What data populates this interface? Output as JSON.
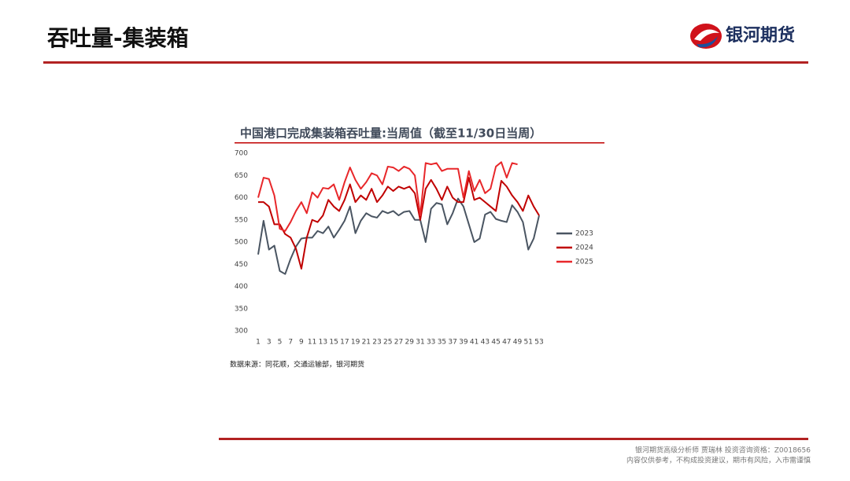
{
  "header": {
    "title": "吞吐量-集装箱",
    "logo": "银河期货"
  },
  "chart_data": {
    "type": "line",
    "title": "中国港口完成集装箱吞吐量:当周值（截至11/30日当周）",
    "categories": [
      1,
      null,
      3,
      null,
      5,
      null,
      7,
      null,
      9,
      null,
      11,
      null,
      13,
      null,
      15,
      null,
      17,
      null,
      19,
      null,
      21,
      null,
      23,
      null,
      25,
      null,
      27,
      null,
      29,
      null,
      31,
      null,
      33,
      null,
      35,
      null,
      37,
      null,
      39,
      null,
      41,
      null,
      43,
      null,
      45,
      null,
      47,
      null,
      49,
      null,
      51,
      null,
      53
    ],
    "series": [
      {
        "name": "2023",
        "color": "#4a5562",
        "values": [
          472,
          548,
          483,
          492,
          435,
          428,
          462,
          490,
          508,
          510,
          510,
          525,
          520,
          535,
          510,
          528,
          548,
          580,
          520,
          548,
          565,
          558,
          555,
          570,
          565,
          570,
          560,
          568,
          570,
          550,
          550,
          500,
          575,
          588,
          585,
          540,
          565,
          598,
          580,
          540,
          500,
          508,
          562,
          568,
          552,
          548,
          545,
          583,
          568,
          545,
          483,
          508,
          560
        ]
      },
      {
        "name": "2024",
        "color": "#c00000",
        "values": [
          590,
          590,
          580,
          540,
          540,
          518,
          510,
          485,
          440,
          510,
          550,
          545,
          560,
          595,
          580,
          570,
          595,
          630,
          590,
          605,
          595,
          620,
          590,
          605,
          625,
          615,
          625,
          620,
          625,
          610,
          550,
          620,
          640,
          620,
          595,
          625,
          600,
          590,
          590,
          645,
          595,
          600,
          590,
          580,
          570,
          638,
          625,
          605,
          590,
          570,
          605,
          580,
          560
        ]
      },
      {
        "name": "2025",
        "color": "#e8272a",
        "values": [
          600,
          645,
          642,
          605,
          530,
          525,
          545,
          570,
          590,
          565,
          612,
          600,
          622,
          620,
          630,
          595,
          635,
          668,
          640,
          620,
          635,
          655,
          650,
          630,
          670,
          668,
          660,
          670,
          665,
          650,
          560,
          678,
          675,
          678,
          660,
          665,
          665,
          665,
          600,
          660,
          615,
          640,
          610,
          620,
          670,
          680,
          645,
          678,
          675,
          null,
          null,
          null,
          null
        ]
      }
    ],
    "ylim": [
      300,
      700
    ],
    "yticks": [
      300,
      350,
      400,
      450,
      500,
      550,
      600,
      650,
      700
    ],
    "legend": "right"
  },
  "source": "数据来源：同花顺，交通运输部，银河期货",
  "footer": [
    "银河期货高级分析师 贾瑞林 投资咨询资格：Z0018656",
    "内容仅供参考，不构成投资建议，期市有风险，入市需谨慎"
  ]
}
